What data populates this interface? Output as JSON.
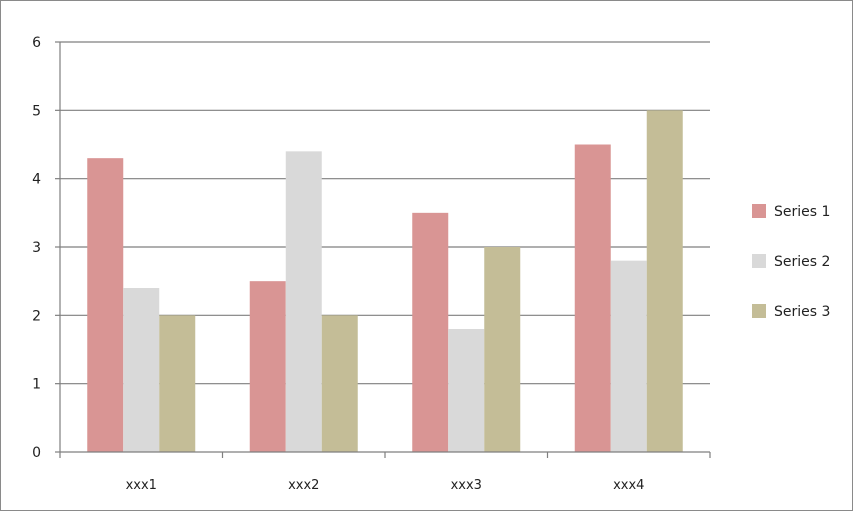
{
  "chart_data": {
    "type": "bar",
    "title": "",
    "xlabel": "",
    "ylabel": "",
    "categories": [
      "xxx1",
      "xxx2",
      "xxx3",
      "xxx4"
    ],
    "series": [
      {
        "name": "Series 1",
        "values": [
          4.3,
          2.5,
          3.5,
          4.5
        ],
        "color": "#d99594"
      },
      {
        "name": "Series 2",
        "values": [
          2.4,
          4.4,
          1.8,
          2.8
        ],
        "color": "#d9d9d9"
      },
      {
        "name": "Series 3",
        "values": [
          2.0,
          2.0,
          3.0,
          5.0
        ],
        "color": "#c4bd97"
      }
    ],
    "ylim": [
      0,
      6
    ],
    "yticks": [
      "0",
      "1",
      "2",
      "3",
      "4",
      "5",
      "6"
    ],
    "grid": true,
    "legend_position": "right",
    "axis_color": "#7f7f7f"
  }
}
